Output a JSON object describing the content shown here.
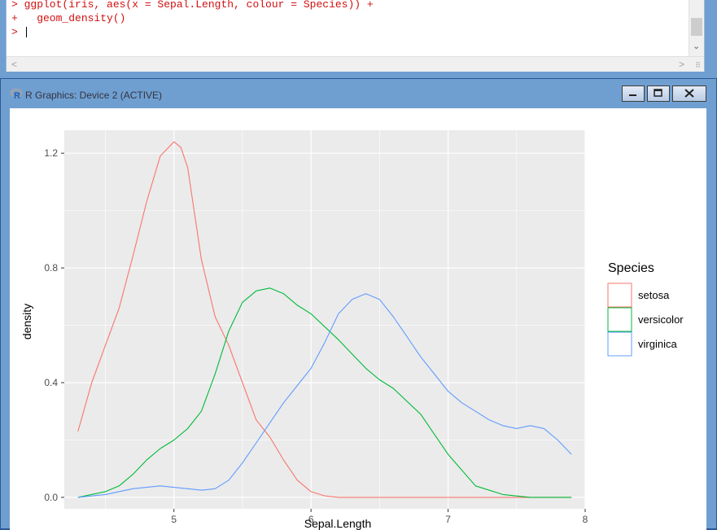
{
  "console": {
    "lines": [
      "> ggplot(iris, aes(x = Sepal.Length, colour = Species)) +",
      "+   geom_density()",
      "> "
    ],
    "scroll_left_glyph": "<",
    "scroll_right_glyph": ">",
    "scroll_down_glyph": "⌄"
  },
  "graphics_window": {
    "title": "R Graphics: Device 2 (ACTIVE)",
    "buttons": [
      "minimize",
      "restore",
      "close"
    ]
  },
  "chart_data": {
    "type": "line",
    "geom": "density",
    "xlabel": "Sepal.Length",
    "ylabel": "density",
    "xlim": [
      4.2,
      8.0
    ],
    "ylim": [
      -0.04,
      1.28
    ],
    "x_ticks": [
      5,
      6,
      7,
      8
    ],
    "y_ticks": [
      0.0,
      0.4,
      0.8,
      1.2
    ],
    "y_tick_labels": [
      "0.0",
      "0.4",
      "0.8",
      "1.2"
    ],
    "grid": true,
    "background": "#EBEBEB",
    "legend": {
      "title": "Species",
      "position": "right"
    },
    "series": [
      {
        "name": "setosa",
        "color": "#F8766D",
        "x": [
          4.3,
          4.4,
          4.5,
          4.6,
          4.7,
          4.8,
          4.9,
          5.0,
          5.05,
          5.1,
          5.2,
          5.3,
          5.4,
          5.5,
          5.6,
          5.7,
          5.8,
          5.9,
          6.0,
          6.1,
          6.2,
          7.9
        ],
        "y": [
          0.23,
          0.4,
          0.53,
          0.66,
          0.84,
          1.03,
          1.19,
          1.24,
          1.22,
          1.15,
          0.83,
          0.63,
          0.53,
          0.4,
          0.27,
          0.21,
          0.13,
          0.06,
          0.02,
          0.005,
          0.0,
          0.0
        ]
      },
      {
        "name": "versicolor",
        "color": "#00BA38",
        "x": [
          4.3,
          4.5,
          4.6,
          4.7,
          4.8,
          4.9,
          5.0,
          5.1,
          5.2,
          5.3,
          5.4,
          5.5,
          5.6,
          5.7,
          5.8,
          5.9,
          6.0,
          6.2,
          6.4,
          6.5,
          6.6,
          6.8,
          6.9,
          7.0,
          7.2,
          7.4,
          7.6,
          7.9
        ],
        "y": [
          0.0,
          0.02,
          0.04,
          0.08,
          0.13,
          0.17,
          0.2,
          0.24,
          0.3,
          0.43,
          0.58,
          0.68,
          0.72,
          0.73,
          0.71,
          0.67,
          0.64,
          0.55,
          0.45,
          0.41,
          0.38,
          0.29,
          0.22,
          0.15,
          0.04,
          0.01,
          0.0,
          0.0
        ]
      },
      {
        "name": "virginica",
        "color": "#619CFF",
        "x": [
          4.3,
          4.5,
          4.7,
          4.9,
          5.0,
          5.1,
          5.2,
          5.3,
          5.4,
          5.5,
          5.6,
          5.7,
          5.8,
          5.9,
          6.0,
          6.1,
          6.2,
          6.3,
          6.4,
          6.5,
          6.6,
          6.7,
          6.8,
          6.9,
          7.0,
          7.1,
          7.2,
          7.3,
          7.4,
          7.5,
          7.6,
          7.7,
          7.8,
          7.9
        ],
        "y": [
          0.0,
          0.01,
          0.03,
          0.04,
          0.035,
          0.03,
          0.025,
          0.03,
          0.06,
          0.12,
          0.19,
          0.26,
          0.33,
          0.39,
          0.45,
          0.54,
          0.64,
          0.69,
          0.71,
          0.69,
          0.63,
          0.56,
          0.49,
          0.43,
          0.37,
          0.33,
          0.3,
          0.27,
          0.25,
          0.24,
          0.25,
          0.24,
          0.2,
          0.15
        ]
      }
    ]
  }
}
